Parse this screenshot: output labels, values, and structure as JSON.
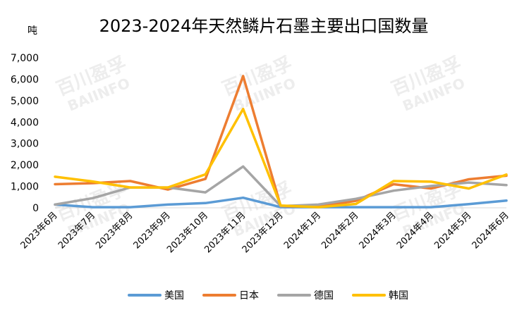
{
  "watermark": "百川盈孚 BAIINFO",
  "chart_data": {
    "type": "line",
    "title": "2023-2024年天然鳞片石墨主要出口国数量",
    "ylabel": "吨",
    "xlabel": "",
    "ylim": [
      0,
      7000
    ],
    "yticks": [
      "0",
      "1,000",
      "2,000",
      "3,000",
      "4,000",
      "5,000",
      "6,000",
      "7,000"
    ],
    "grid": false,
    "legend": "bottom",
    "categories": [
      "2023年6月",
      "2023年7月",
      "2023年8月",
      "2023年9月",
      "2023年10月",
      "2023年11月",
      "2023年12月",
      "2024年1月",
      "2024年2月",
      "2024年3月",
      "2024年4月",
      "2024年5月",
      "2024年6月"
    ],
    "series": [
      {
        "name": "美国",
        "color": "#5B9BD5",
        "values": [
          150,
          30,
          30,
          150,
          220,
          470,
          30,
          30,
          30,
          30,
          30,
          170,
          340
        ]
      },
      {
        "name": "日本",
        "color": "#ED7D31",
        "values": [
          1100,
          1150,
          1250,
          850,
          1350,
          6150,
          80,
          50,
          330,
          1100,
          900,
          1330,
          1500
        ]
      },
      {
        "name": "德国",
        "color": "#A5A5A5",
        "values": [
          150,
          450,
          950,
          950,
          720,
          1930,
          80,
          150,
          420,
          800,
          1020,
          1180,
          1060
        ]
      },
      {
        "name": "韩国",
        "color": "#FFC000",
        "values": [
          1450,
          1230,
          950,
          950,
          1560,
          4610,
          110,
          30,
          180,
          1250,
          1220,
          900,
          1550
        ]
      }
    ],
    "axis_color": "#D9D9D9"
  }
}
